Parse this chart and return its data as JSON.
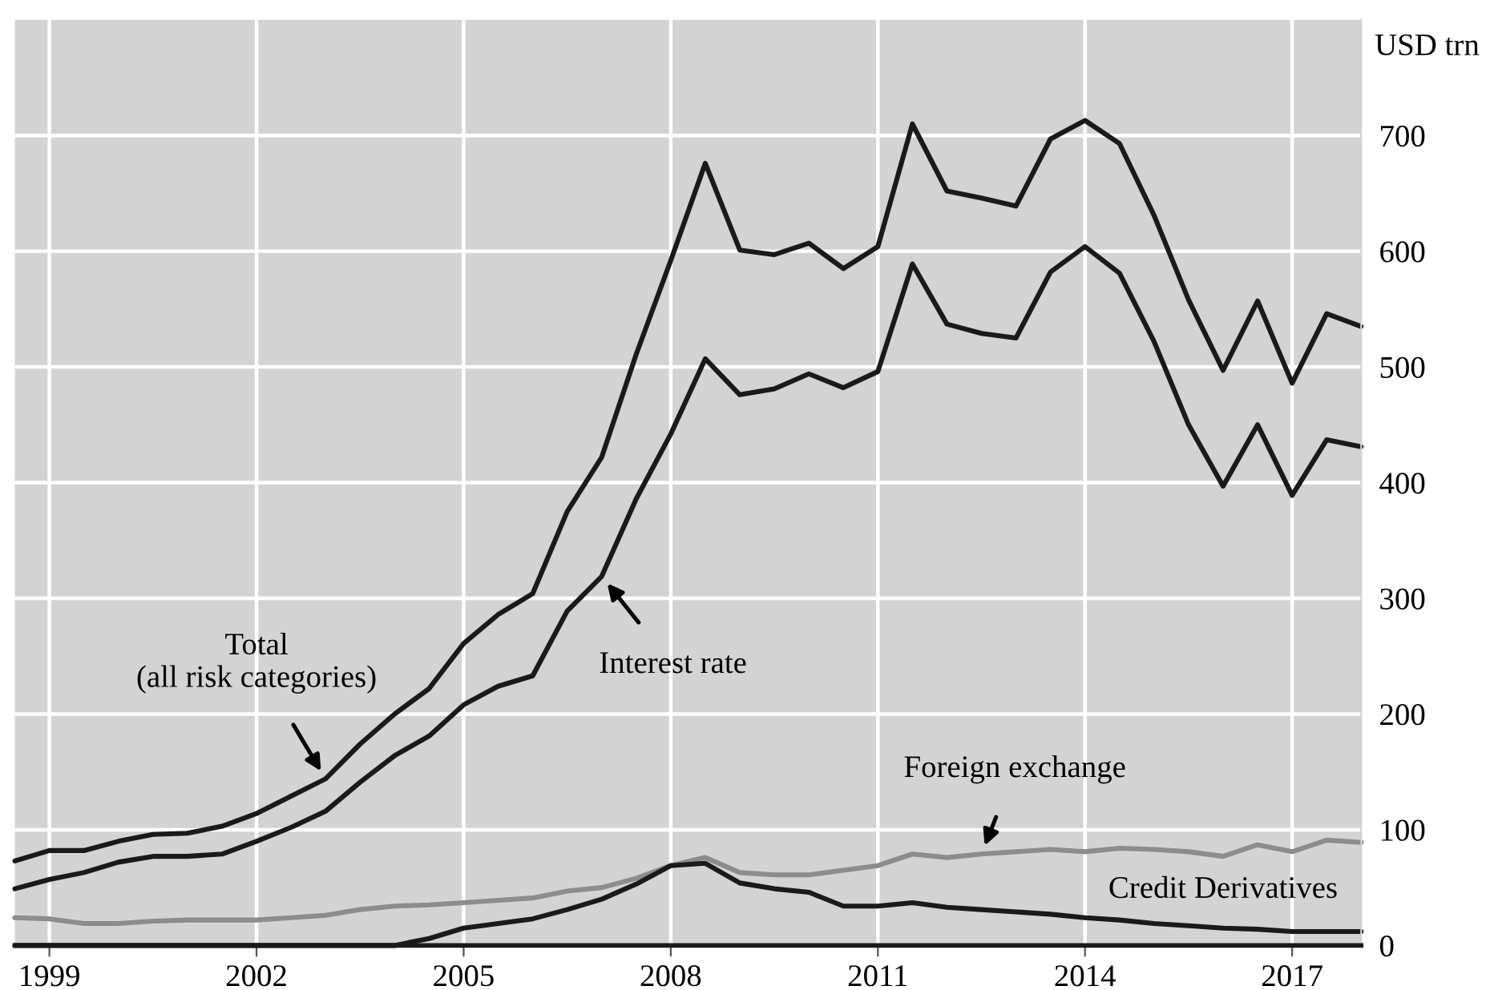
{
  "chart_data": {
    "type": "line",
    "ylabel": "USD trn",
    "x": [
      1998.5,
      1999.0,
      1999.5,
      2000.0,
      2000.5,
      2001.0,
      2001.5,
      2002.0,
      2002.5,
      2003.0,
      2003.5,
      2004.0,
      2004.5,
      2005.0,
      2005.5,
      2006.0,
      2006.5,
      2007.0,
      2007.5,
      2008.0,
      2008.5,
      2009.0,
      2009.5,
      2010.0,
      2010.5,
      2011.0,
      2011.5,
      2012.0,
      2012.5,
      2013.0,
      2013.5,
      2014.0,
      2014.5,
      2015.0,
      2015.5,
      2016.0,
      2016.5,
      2017.0,
      2017.5,
      2018.0
    ],
    "series": [
      {
        "color": "#1a1a1a",
        "values": [
          73,
          82,
          82,
          90,
          96,
          97,
          103,
          114,
          129,
          144,
          174,
          200,
          222,
          261,
          286,
          304,
          375,
          422,
          511,
          592,
          676,
          601,
          597,
          607,
          585,
          604,
          710,
          652,
          646,
          639,
          697,
          713,
          693,
          631,
          558,
          497,
          557,
          486,
          546,
          535
        ]
      },
      {
        "color": "#1a1a1a",
        "values": [
          49,
          57,
          63,
          72,
          77,
          77,
          79,
          90,
          102,
          116,
          141,
          164,
          181,
          208,
          224,
          233,
          289,
          319,
          386,
          442,
          507,
          476,
          481,
          494,
          482,
          496,
          589,
          537,
          529,
          525,
          582,
          604,
          581,
          522,
          450,
          397,
          450,
          389,
          437,
          431
        ]
      },
      {
        "color": "#8c8c8c",
        "values": [
          24,
          23,
          19,
          19,
          21,
          22,
          22,
          22,
          24,
          26,
          31,
          34,
          35,
          37,
          39,
          41,
          47,
          50,
          58,
          69,
          76,
          63,
          61,
          61,
          65,
          69,
          79,
          76,
          79,
          81,
          83,
          81,
          84,
          83,
          81,
          77,
          87,
          81,
          91,
          89
        ]
      },
      {
        "color": "#1a1a1a",
        "values": [
          0,
          0,
          0,
          0,
          0,
          0,
          0,
          0,
          0,
          0,
          0,
          0,
          6,
          15,
          19,
          23,
          31,
          40,
          53,
          69,
          71,
          54,
          49,
          46,
          34,
          34,
          37,
          33,
          31,
          29,
          27,
          24,
          22,
          19,
          17,
          15,
          14,
          12,
          12,
          12
        ]
      }
    ],
    "xlim": [
      1998.5,
      2018.0
    ],
    "xticks": [
      1999,
      2002,
      2005,
      2008,
      2011,
      2014,
      2017
    ],
    "ylim": [
      0,
      800
    ],
    "yticks": [
      0,
      100,
      200,
      300,
      400,
      500,
      600,
      700
    ],
    "grid": true,
    "annotations": [
      {
        "text": "Total\n(all risk categories)",
        "x": 2003.0,
        "y": 144
      },
      {
        "text": "Interest rate",
        "x": 2007.0,
        "y": 319
      },
      {
        "text": "Foreign exchange",
        "x": 2012.5,
        "y": 79
      },
      {
        "text": "Credit Derivatives",
        "x": 2016.0,
        "y": 15
      }
    ]
  }
}
